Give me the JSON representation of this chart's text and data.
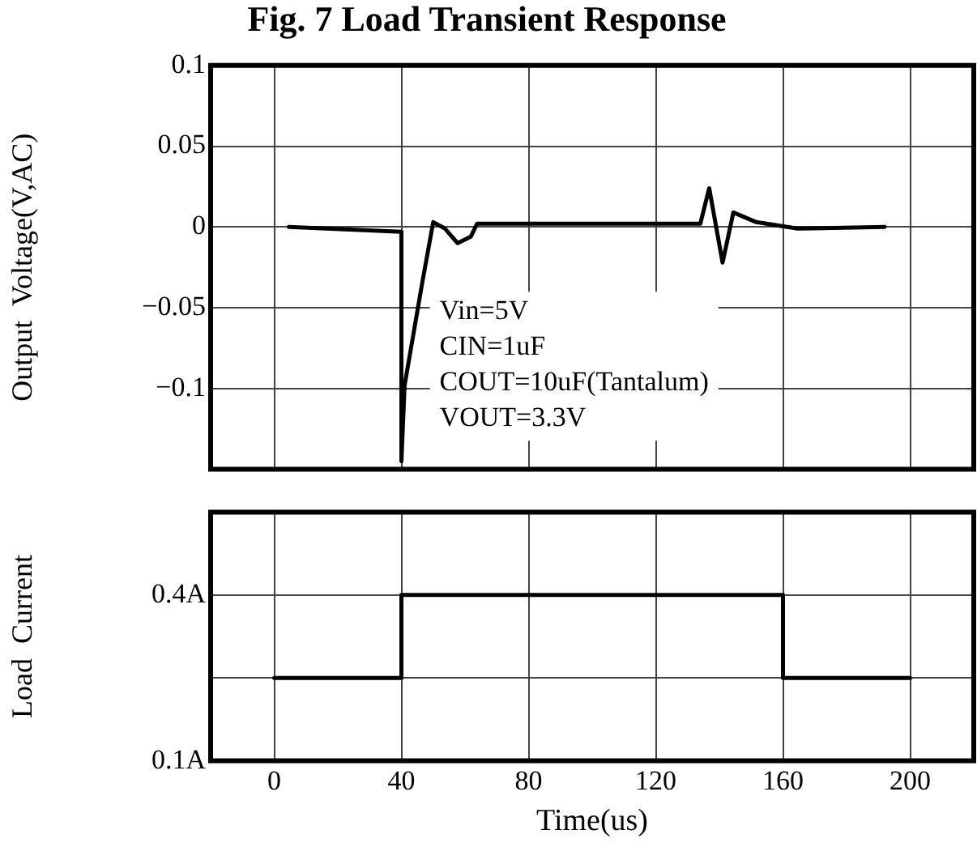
{
  "chart_data": [
    {
      "type": "line",
      "title": "Fig. 7 Load Transient Response",
      "ylabel": "Output  Voltage(V,AC)",
      "xlim": [
        -20,
        220
      ],
      "xticks": [
        0,
        40,
        80,
        120,
        160,
        200
      ],
      "ylim": [
        -0.15,
        0.1
      ],
      "yticks": [
        0.1,
        0.05,
        0,
        -0.05,
        -0.1,
        {
          "value": -0.15,
          "label": null
        }
      ],
      "tick_labels": "y",
      "grid": true,
      "legend": false,
      "marker": "none",
      "line_style": "solid",
      "series": [
        {
          "color": "#000000",
          "x": [
            4.6,
            40,
            40,
            41,
            46.6,
            50,
            53.7,
            57.7,
            61.8,
            63.8,
            134,
            136.8,
            141,
            144.4,
            151.6,
            164.6,
            192
          ],
          "values": [
            0,
            -0.003,
            -0.145,
            -0.098,
            -0.034,
            0.003,
            -0.001,
            -0.01,
            -0.006,
            0.002,
            0.002,
            0.024,
            -0.022,
            0.009,
            0.003,
            -0.001,
            0
          ]
        }
      ],
      "annotations": [
        "Vin=5V",
        "CIN=1uF",
        "COUT=10uF(Tantalum)",
        "VOUT=3.3V"
      ]
    },
    {
      "type": "line",
      "xlabel": "Time(us)",
      "ylabel": "Load  Current",
      "xlim": [
        -20,
        220
      ],
      "xticks": [
        0,
        40,
        80,
        120,
        160,
        200
      ],
      "ylim": [
        0.1,
        0.55
      ],
      "yticks": [
        {
          "value": 0.1,
          "label": "0.1A"
        },
        {
          "value": 0.25,
          "label": null
        },
        {
          "value": 0.4,
          "label": "0.4A"
        },
        {
          "value": 0.55,
          "label": null
        }
      ],
      "grid": true,
      "legend": false,
      "marker": "none",
      "line_style": "solid",
      "series": [
        {
          "color": "#000000",
          "x": [
            0,
            40,
            40,
            160,
            160,
            200
          ],
          "values": [
            0.25,
            0.25,
            0.4,
            0.4,
            0.25,
            0.25
          ]
        }
      ]
    }
  ]
}
